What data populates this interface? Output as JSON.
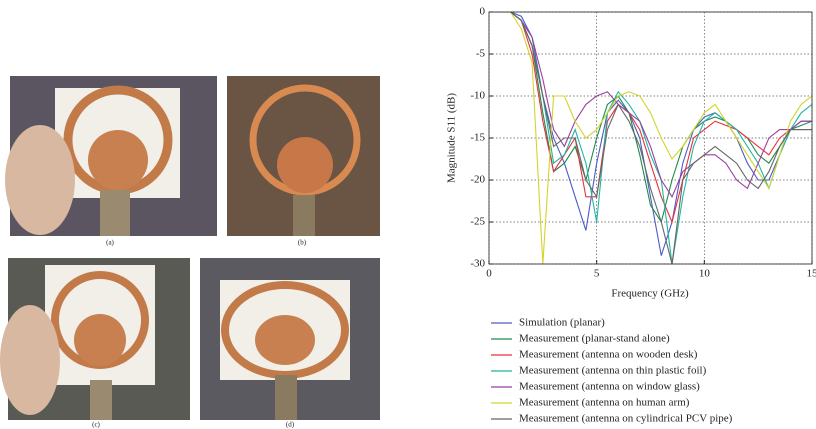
{
  "figure": {
    "captions": [
      "(a)",
      "(b)",
      "(c)",
      "(d)"
    ]
  },
  "chart_data": {
    "type": "line",
    "xlabel": "Frequency (GHz)",
    "ylabel": "Magnitude S11 (dB)",
    "x": [
      0,
      0.5,
      1,
      1.5,
      2,
      2.5,
      3,
      3.5,
      4,
      4.5,
      5,
      5.5,
      6,
      6.5,
      7,
      7.5,
      8,
      8.5,
      9,
      9.5,
      10,
      10.5,
      11,
      11.5,
      12,
      12.5,
      13,
      13.5,
      14,
      14.5,
      15
    ],
    "xlim": [
      0,
      15
    ],
    "xticks": [
      0,
      5,
      10,
      15
    ],
    "ylim": [
      -30,
      0
    ],
    "yticks": [
      0,
      -5,
      -10,
      -15,
      -20,
      -25,
      -30
    ],
    "grid": true,
    "series": [
      {
        "name": "Simulation (planar)",
        "color": "#4a5cc4",
        "values": [
          0,
          0,
          0,
          -0.5,
          -3,
          -10,
          -15,
          -18,
          -22,
          -26,
          -18,
          -12,
          -10.5,
          -12,
          -15,
          -22,
          -29,
          -25,
          -18,
          -14,
          -12.5,
          -12,
          -13,
          -15,
          -18,
          -20,
          -20,
          -17,
          -14,
          -13,
          -13
        ]
      },
      {
        "name": "Measurement (planar-stand alone)",
        "color": "#1e8a4a",
        "values": [
          0,
          0,
          0,
          -1,
          -4,
          -12,
          -19,
          -18,
          -16,
          -20,
          -15,
          -11,
          -10,
          -12,
          -17,
          -23,
          -25,
          -20,
          -16,
          -14,
          -13,
          -12.5,
          -13,
          -14,
          -15,
          -17,
          -18,
          -16,
          -14,
          -13.5,
          -13
        ]
      },
      {
        "name": "Measurement (antenna on wooden desk)",
        "color": "#e8303a",
        "values": [
          0,
          0,
          0,
          -1,
          -5,
          -13,
          -19,
          -17,
          -15,
          -22,
          -22,
          -13,
          -11,
          -12,
          -14,
          -18,
          -22,
          -25,
          -20,
          -15,
          -14,
          -13,
          -13.5,
          -14,
          -15,
          -16,
          -17,
          -15,
          -14,
          -14,
          -14
        ]
      },
      {
        "name": "Measurement (antenna on thin plastic foil)",
        "color": "#22b5a5",
        "values": [
          0,
          0,
          0,
          -1,
          -4,
          -10,
          -18,
          -17,
          -14,
          -18,
          -25,
          -12,
          -9.5,
          -11,
          -13,
          -17,
          -20,
          -30,
          -22,
          -16,
          -13,
          -12,
          -13,
          -14,
          -16,
          -18,
          -21,
          -17,
          -14,
          -12,
          -11
        ]
      },
      {
        "name": "Measurement (antenna on window glass)",
        "color": "#9b3fa0",
        "values": [
          0,
          0,
          0,
          -1,
          -3,
          -8,
          -14,
          -16,
          -13,
          -11,
          -10,
          -9.5,
          -11,
          -12,
          -13,
          -16,
          -20,
          -22,
          -19,
          -18,
          -17,
          -17,
          -18,
          -20,
          -21,
          -18,
          -15,
          -14,
          -14,
          -13,
          -13
        ]
      },
      {
        "name": "Measurement (antenna on human arm)",
        "color": "#d4d42c",
        "values": [
          0,
          0,
          0,
          -2,
          -6,
          -30,
          -10,
          -10,
          -13,
          -15,
          -14,
          -12,
          -10,
          -9.5,
          -10,
          -12,
          -15,
          -17.5,
          -16,
          -14,
          -12,
          -11,
          -13,
          -15,
          -17,
          -19,
          -21,
          -17,
          -13,
          -11,
          -10
        ]
      },
      {
        "name": "Measurement (antenna on cylindrical PCV pipe)",
        "color": "#666666",
        "values": [
          0,
          0,
          0,
          -1,
          -4,
          -10,
          -16,
          -15,
          -15,
          -20,
          -22,
          -14,
          -11,
          -13,
          -16,
          -21,
          -25,
          -30,
          -20,
          -18,
          -17,
          -16,
          -17,
          -18,
          -20,
          -21,
          -19,
          -16,
          -14,
          -14,
          -14
        ]
      }
    ]
  }
}
